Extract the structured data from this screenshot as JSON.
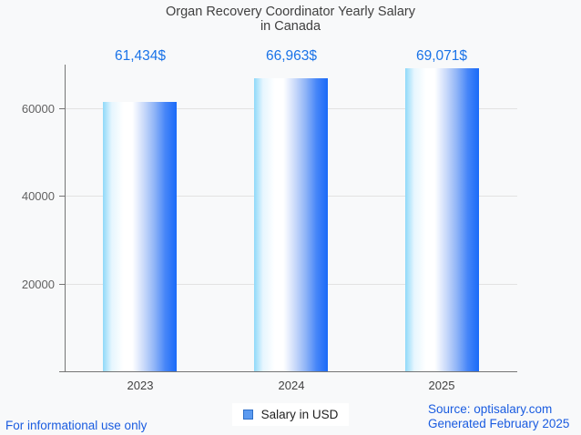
{
  "title": {
    "line1": "Organ Recovery Coordinator Yearly Salary",
    "line2": "in Canada"
  },
  "chart_data": {
    "type": "bar",
    "title": "Organ Recovery Coordinator Yearly Salary in Canada",
    "categories": [
      "2023",
      "2024",
      "2025"
    ],
    "series": [
      {
        "name": "Salary in USD",
        "values": [
          61434,
          66963,
          69071
        ]
      }
    ],
    "value_labels": [
      "61,434$",
      "66,963$",
      "69,071$"
    ],
    "xlabel": "",
    "ylabel": "",
    "ylim": [
      0,
      70000
    ],
    "yticks": [
      20000,
      40000,
      60000
    ],
    "grid": true,
    "legend_position": "bottom"
  },
  "legend": {
    "label": "Salary in USD"
  },
  "footer": {
    "disclaimer": "For informational use only",
    "source": "Source: optisalary.com",
    "generated": "Generated February 2025"
  },
  "colors": {
    "background": "#f8f9fa",
    "title_text": "#404040",
    "value_label_text": "#1a73e8",
    "footer_text": "#1a5ce0",
    "axis": "#757575",
    "gridline": "#e2e2e2",
    "tick_label_text": "#616161",
    "legend_marker_fill": "#5b9af0",
    "legend_marker_border": "#2e6fc8",
    "bar_gradient": [
      "#8fd9f9",
      "#ffffff",
      "#ccdbfa",
      "#1a6af8"
    ]
  }
}
